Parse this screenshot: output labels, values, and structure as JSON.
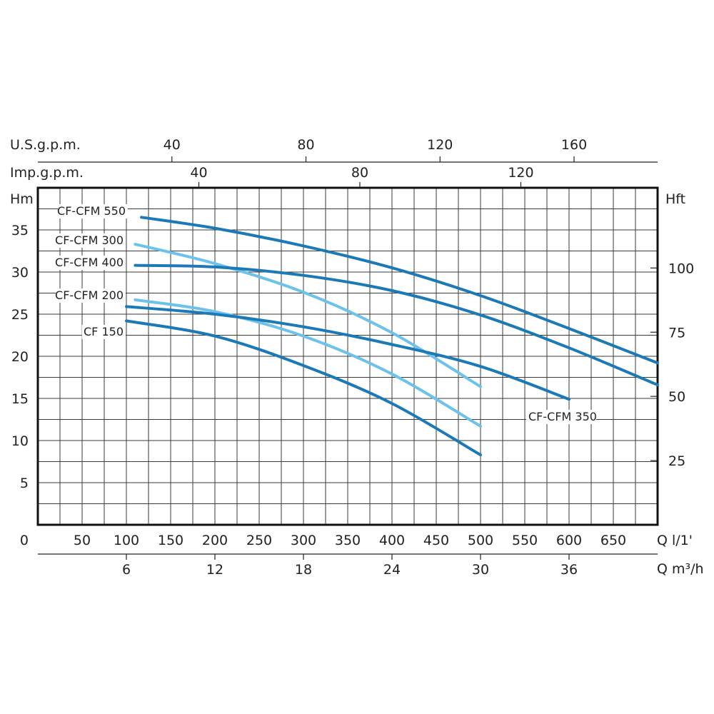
{
  "chart_data": {
    "type": "line",
    "units": {
      "left_y": "Hm",
      "right_y": "Hft",
      "bottom_x": "Q l/1'",
      "bottom_x2": "Q m³/h",
      "top_x": "U.S.g.p.m.",
      "top_x2": "Imp.g.p.m."
    },
    "x_range": [
      0,
      700
    ],
    "y_range": [
      0,
      40
    ],
    "x_ticks": [
      0,
      50,
      100,
      150,
      200,
      250,
      300,
      350,
      400,
      450,
      500,
      550,
      600,
      650
    ],
    "x_tick_labels": [
      "0",
      "50",
      "100",
      "150",
      "200",
      "250",
      "300",
      "350",
      "400",
      "450",
      "500",
      "550",
      "600",
      "650"
    ],
    "x2_ticks": [
      6,
      12,
      18,
      24,
      30,
      36
    ],
    "usgpm_ticks": [
      40,
      80,
      120,
      160
    ],
    "impgpm_ticks": [
      40,
      80,
      120
    ],
    "y_ticks": [
      5,
      10,
      15,
      20,
      25,
      30,
      35
    ],
    "y_tick_labels": [
      "5",
      "10",
      "15",
      "20",
      "25",
      "30",
      "35"
    ],
    "y_origin_label": "0",
    "y2_ticks": [
      25,
      50,
      75,
      100
    ],
    "grid": true,
    "series": [
      {
        "name": "CF-CFM 550",
        "color": "#1c79b8",
        "label_pos": "left",
        "x": [
          117,
          200,
          300,
          400,
          500,
          600,
          700
        ],
        "y": [
          36.5,
          35.2,
          33.1,
          30.5,
          27.2,
          23.3,
          19.2
        ]
      },
      {
        "name": "CF-CFM 300",
        "color": "#6cc2ea",
        "label_pos": "left",
        "x": [
          110,
          200,
          300,
          400,
          500
        ],
        "y": [
          33.3,
          31.0,
          27.6,
          22.8,
          16.4
        ]
      },
      {
        "name": "CF-CFM 400",
        "color": "#1c79b8",
        "label_pos": "left",
        "x": [
          110,
          200,
          300,
          400,
          500,
          600,
          700
        ],
        "y": [
          30.8,
          30.6,
          29.6,
          27.8,
          24.9,
          21.0,
          16.6
        ]
      },
      {
        "name": "CF-CFM 200",
        "color": "#6cc2ea",
        "label_pos": "left",
        "x": [
          110,
          200,
          300,
          400,
          500
        ],
        "y": [
          26.7,
          25.3,
          22.4,
          17.9,
          11.7
        ]
      },
      {
        "name": "CF-CFM 350",
        "color": "#1c79b8",
        "label_pos": "right",
        "x": [
          100,
          200,
          300,
          400,
          500,
          600
        ],
        "y": [
          25.9,
          25.0,
          23.5,
          21.4,
          18.8,
          14.9
        ]
      },
      {
        "name": "CF 150",
        "color": "#1c79b8",
        "label_pos": "left",
        "x": [
          100,
          200,
          300,
          400,
          500
        ],
        "y": [
          24.2,
          22.4,
          18.9,
          14.4,
          8.3
        ]
      }
    ]
  }
}
